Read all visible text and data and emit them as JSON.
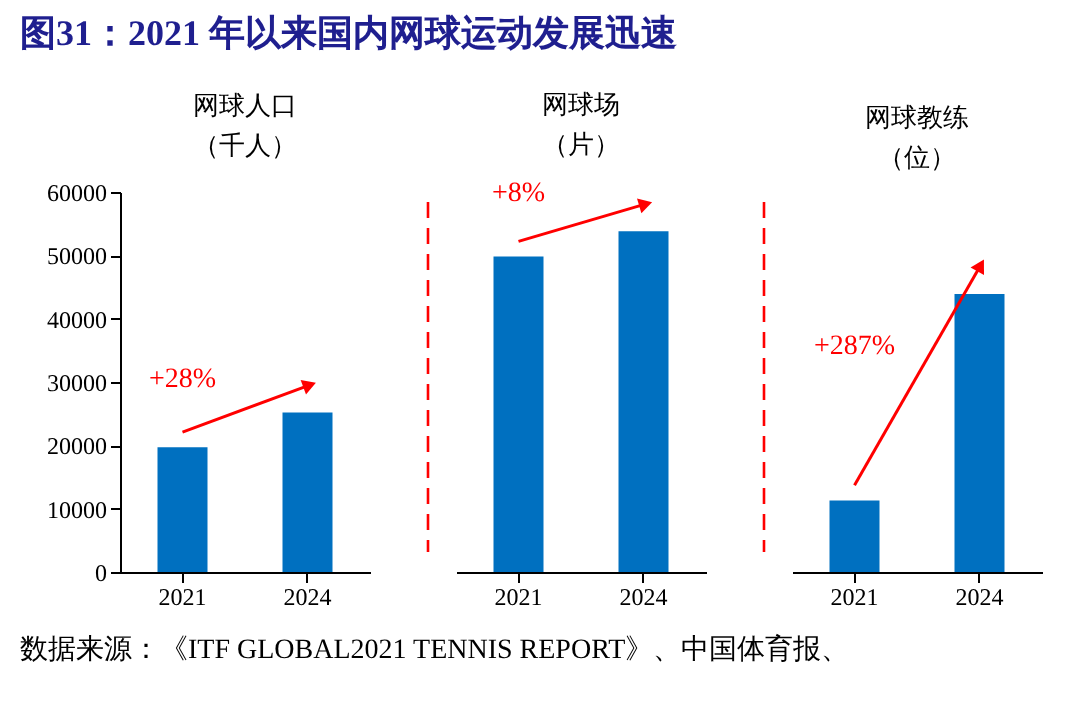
{
  "chart_data": [
    {
      "type": "bar",
      "title": "图31：2021 年以来国内网球运动发展迅速",
      "subtitle": [
        "网球人口",
        "（千人）"
      ],
      "categories": [
        "2021",
        "2024"
      ],
      "values": [
        19700,
        25200
      ],
      "color": "#0070c0",
      "ylim": [
        0,
        60000
      ],
      "yticks": [
        0,
        10000,
        20000,
        30000,
        40000,
        50000,
        60000
      ],
      "grid": false,
      "annotations": [
        "+28%",
        "数据来源：《ITF GLOBAL2021 TENNIS REPORT》、中国体育报、"
      ]
    },
    {
      "type": "bar",
      "subtitle": [
        "网球场",
        "（片）"
      ],
      "categories": [
        "2021",
        "2024"
      ],
      "values": [
        49800,
        53800
      ],
      "color": "#0070c0",
      "ylim": [
        0,
        60000
      ],
      "grid": false,
      "tick_labels": "x",
      "annotations": [
        "+8%"
      ]
    },
    {
      "type": "bar",
      "subtitle": [
        "网球教练",
        "（位）"
      ],
      "categories": [
        "2021",
        "2024"
      ],
      "values": [
        11300,
        43900
      ],
      "color": "#0070c0",
      "ylim": [
        0,
        60000
      ],
      "grid": false,
      "tick_labels": "x",
      "annotations": [
        "+287%"
      ]
    }
  ]
}
